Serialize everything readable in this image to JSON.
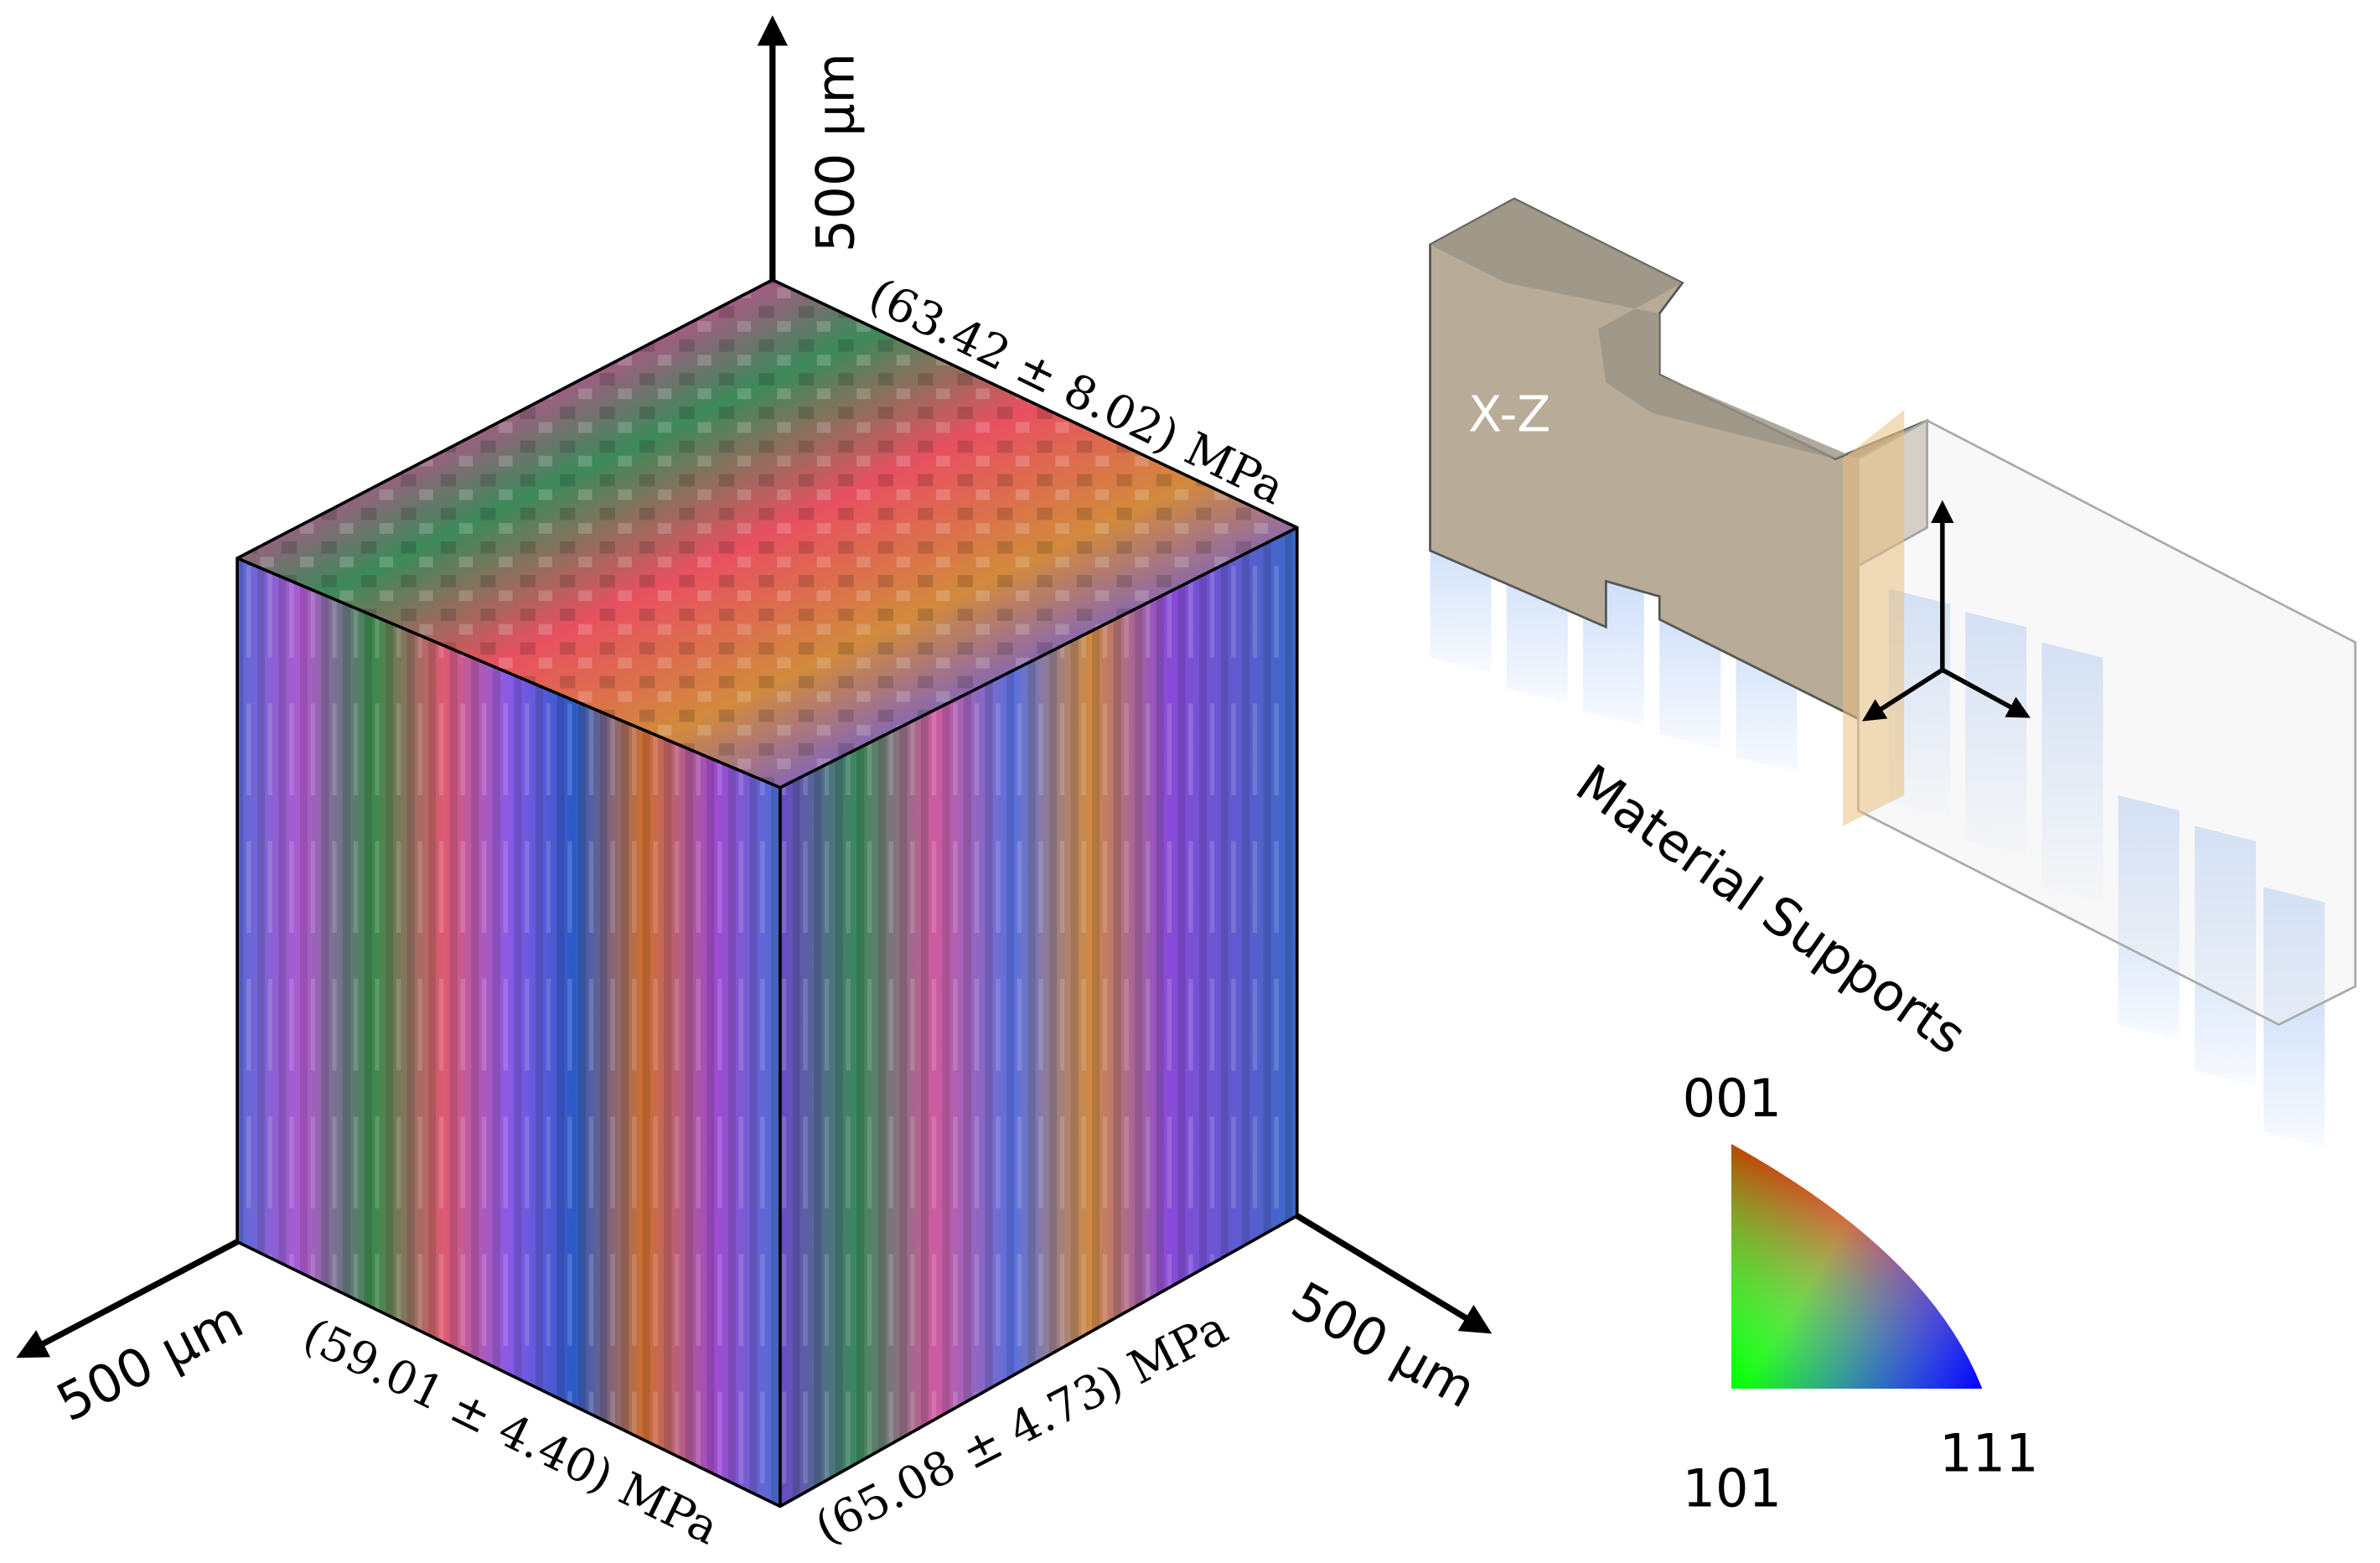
{
  "cube": {
    "axis_z_label": "500 µm",
    "axis_x_label": "500 µm",
    "axis_y_label": "500 µm",
    "top_face_label": "(63.42 ± 8.02) MPa",
    "left_face_label": "(59.01 ± 4.40) MPa",
    "right_face_label": "(65.08 ± 4.73) MPa"
  },
  "specimen": {
    "plane_label": "X-Z",
    "supports_label": "Material Supports"
  },
  "ipf_legend": {
    "top": "001",
    "bottom_left": "101",
    "bottom_right": "111"
  }
}
